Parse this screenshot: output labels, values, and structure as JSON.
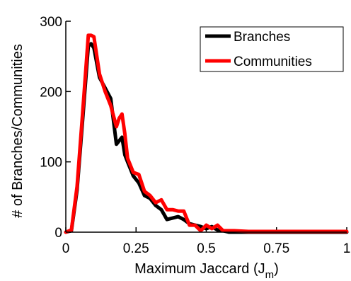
{
  "chart_data": {
    "type": "line",
    "title": "",
    "xlabel": "Maximum Jaccard (J",
    "xlabel_sub": "m",
    "xlabel_close": ")",
    "ylabel": "# of Branches/Communities",
    "xlim": [
      0,
      1
    ],
    "ylim": [
      0,
      300
    ],
    "xticks": [
      0,
      0.25,
      0.5,
      0.75,
      1
    ],
    "xtick_labels": [
      "0",
      "0.25",
      "0.5",
      "0.75",
      "1"
    ],
    "yticks": [
      0,
      100,
      200,
      300
    ],
    "ytick_labels": [
      "0",
      "100",
      "200",
      "300"
    ],
    "grid": false,
    "legend_position": "top-right",
    "series": [
      {
        "name": "Branches",
        "color": "#000000",
        "x": [
          0,
          0.02,
          0.04,
          0.06,
          0.08,
          0.09,
          0.1,
          0.12,
          0.14,
          0.16,
          0.18,
          0.19,
          0.2,
          0.21,
          0.22,
          0.24,
          0.26,
          0.28,
          0.3,
          0.32,
          0.34,
          0.36,
          0.38,
          0.4,
          0.42,
          0.44,
          0.46,
          0.48,
          0.5,
          0.52,
          0.54,
          0.56,
          0.58,
          0.6,
          0.65,
          0.7,
          0.75,
          0.8,
          0.85,
          0.9,
          0.95,
          1
        ],
        "y": [
          0,
          2,
          60,
          160,
          265,
          268,
          262,
          220,
          205,
          190,
          125,
          130,
          135,
          110,
          100,
          80,
          70,
          52,
          48,
          38,
          32,
          18,
          20,
          22,
          18,
          12,
          10,
          8,
          5,
          8,
          3,
          2,
          0,
          0,
          0,
          0,
          0,
          0,
          0,
          0,
          0,
          0
        ]
      },
      {
        "name": "Communities",
        "color": "#ff0000",
        "x": [
          0,
          0.02,
          0.04,
          0.06,
          0.08,
          0.09,
          0.1,
          0.12,
          0.14,
          0.16,
          0.18,
          0.19,
          0.2,
          0.21,
          0.22,
          0.24,
          0.26,
          0.28,
          0.3,
          0.32,
          0.34,
          0.36,
          0.38,
          0.4,
          0.42,
          0.44,
          0.46,
          0.48,
          0.5,
          0.52,
          0.54,
          0.56,
          0.58,
          0.6,
          0.65,
          0.7,
          0.75,
          0.8,
          0.85,
          0.9,
          0.95,
          1
        ],
        "y": [
          0,
          3,
          65,
          170,
          280,
          280,
          278,
          225,
          200,
          180,
          150,
          162,
          168,
          140,
          105,
          85,
          82,
          58,
          52,
          42,
          46,
          32,
          32,
          30,
          30,
          10,
          10,
          2,
          10,
          5,
          10,
          2,
          2,
          2,
          1,
          1,
          1,
          1,
          1,
          1,
          1,
          1
        ]
      }
    ]
  }
}
